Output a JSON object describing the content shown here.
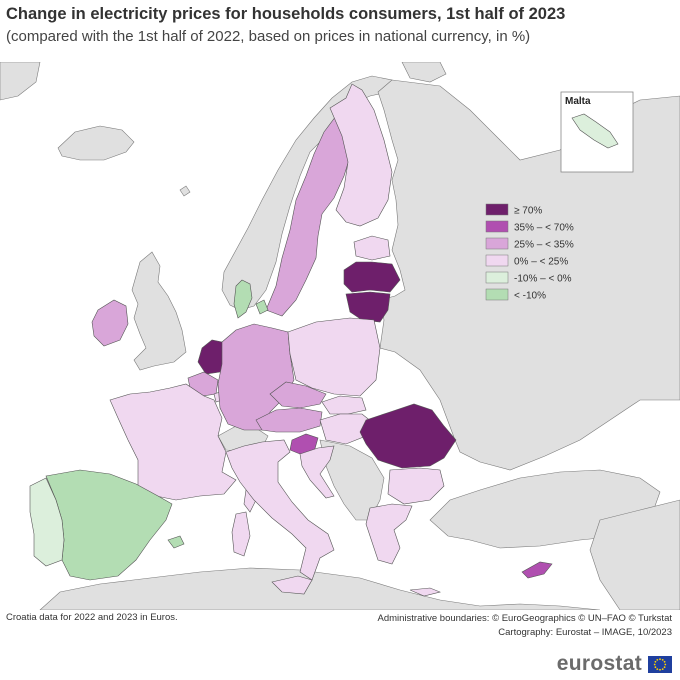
{
  "header": {
    "title": "Change in electricity prices for households consumers, 1st half of 2023",
    "subtitle": "(compared with the 1st half of 2022, based on prices in national currency, in %)"
  },
  "legend": {
    "classes": [
      {
        "label": "≥ 70%",
        "color": "#6e1f6b"
      },
      {
        "label": "35% – < 70%",
        "color": "#b04fb0"
      },
      {
        "label": "25% – < 35%",
        "color": "#d9a6d9"
      },
      {
        "label": "0% – < 25%",
        "color": "#f0d8f0"
      },
      {
        "label": "-10% – < 0%",
        "color": "#dcefdc"
      },
      {
        "label": "< -10%",
        "color": "#b3ddb3"
      }
    ]
  },
  "colors": {
    "sea": "#ffffff",
    "non_eu": "#e0e0e0",
    "border": "#555555"
  },
  "inset": {
    "title": "Malta"
  },
  "footer": {
    "note": "Croatia data for 2022 and 2023 in Euros.",
    "credit_line1": "Administrative boundaries: © EuroGeographics © UN–FAO © Turkstat",
    "credit_line2": "Cartography: Eurostat – IMAGE, 10/2023",
    "logo": "eurostat"
  }
}
